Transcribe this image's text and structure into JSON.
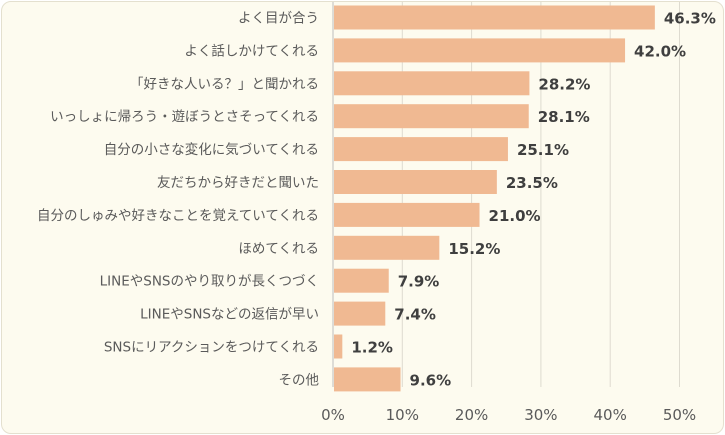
{
  "chart_data": {
    "type": "bar",
    "orientation": "horizontal",
    "categories": [
      "よく目が合う",
      "よく話しかけてくれる",
      "「好きな人いる？」と聞かれる",
      "いっしょに帰ろう・遊ぼうとさそってくれる",
      "自分の小さな変化に気づいてくれる",
      "友だちから好きだと聞いた",
      "自分のしゅみや好きなことを覚えていてくれる",
      "ほめてくれる",
      "LINEやSNSのやり取りが長くつづく",
      "LINEやSNSなどの返信が早い",
      "SNSにリアクションをつけてくれる",
      "その他"
    ],
    "values": [
      46.3,
      42.0,
      28.2,
      28.1,
      25.1,
      23.5,
      21.0,
      15.2,
      7.9,
      7.4,
      1.2,
      9.6
    ],
    "value_labels": [
      "46.3%",
      "42.0%",
      "28.2%",
      "28.1%",
      "25.1%",
      "23.5%",
      "21.0%",
      "15.2%",
      "7.9%",
      "7.4%",
      "1.2%",
      "9.6%"
    ],
    "xlim": [
      0,
      50
    ],
    "x_ticks": [
      "0%",
      "10%",
      "20%",
      "30%",
      "40%",
      "50%"
    ],
    "grid": true,
    "bar_color": "#f0b992"
  }
}
